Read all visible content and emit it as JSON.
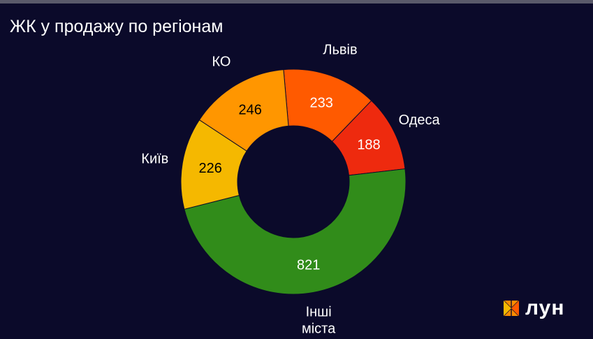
{
  "title": "ЖК у продажу по регіонам",
  "logo": {
    "text": "лун",
    "icon": "lun-logo-icon"
  },
  "chart_data": {
    "type": "pie",
    "variant": "donut",
    "title": "ЖК у продажу по регіонам",
    "categories": [
      "Львів",
      "Одеса",
      "Інші міста",
      "Київ",
      "КО"
    ],
    "label_lines": [
      [
        "Львів"
      ],
      [
        "Одеса"
      ],
      [
        "Інші",
        "міста"
      ],
      [
        "Київ"
      ],
      [
        "КО"
      ]
    ],
    "values": [
      233,
      188,
      821,
      226,
      246
    ],
    "colors": [
      "#ff5a00",
      "#ee2a0e",
      "#318c1a",
      "#f5b800",
      "#ff9600"
    ],
    "value_label_colors": [
      "#ffffff",
      "#ffffff",
      "#ffffff",
      "#000000",
      "#000000"
    ],
    "legend": "none"
  }
}
